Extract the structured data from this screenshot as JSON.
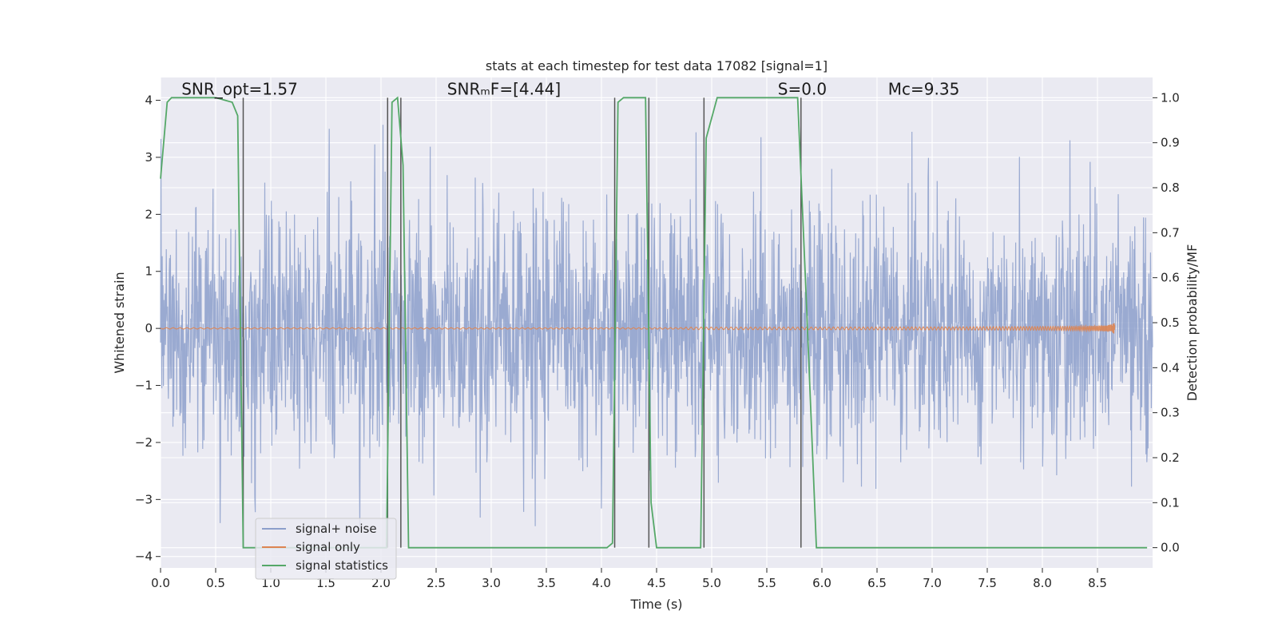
{
  "chart_data": {
    "type": "line",
    "title": "stats at each timestep for test data 17082 [signal=1]",
    "xlabel": "Time (s)",
    "ylabel_left": "Whitened strain",
    "ylabel_right": "Detection probability/MF",
    "xlim": [
      0.0,
      9.0
    ],
    "ylim_left": [
      -4.2,
      4.4
    ],
    "ylim_right": [
      -0.045,
      1.045
    ],
    "xticks": [
      0.0,
      0.5,
      1.0,
      1.5,
      2.0,
      2.5,
      3.0,
      3.5,
      4.0,
      4.5,
      5.0,
      5.5,
      6.0,
      6.5,
      7.0,
      7.5,
      8.0,
      8.5
    ],
    "xtick_labels": [
      "0.0",
      "0.5",
      "1.0",
      "1.5",
      "2.0",
      "2.5",
      "3.0",
      "3.5",
      "4.0",
      "4.5",
      "5.0",
      "5.5",
      "6.0",
      "6.5",
      "7.0",
      "7.5",
      "8.0",
      "8.5"
    ],
    "yticks_left": [
      -4,
      -3,
      -2,
      -1,
      0,
      1,
      2,
      3,
      4
    ],
    "ytick_labels_left": [
      "−4",
      "−3",
      "−2",
      "−1",
      "0",
      "1",
      "2",
      "3",
      "4"
    ],
    "yticks_right": [
      0.0,
      0.1,
      0.2,
      0.3,
      0.4,
      0.5,
      0.6,
      0.7,
      0.8,
      0.9,
      1.0
    ],
    "ytick_labels_right": [
      "0.0",
      "0.1",
      "0.2",
      "0.3",
      "0.4",
      "0.5",
      "0.6",
      "0.7",
      "0.8",
      "0.9",
      "1.0"
    ],
    "grid": true,
    "legend_position": "lower-left",
    "annotations": [
      {
        "text": "SNR_opt=1.57",
        "x": 0.19,
        "y": 4.1
      },
      {
        "text": "SNRₘF=[4.44]",
        "x": 2.6,
        "y": 4.1
      },
      {
        "text": "S=0.0",
        "x": 5.6,
        "y": 4.1
      },
      {
        "text": "Mᴄ=9.35",
        "x": 6.6,
        "y": 4.1
      }
    ],
    "series": [
      {
        "name": "signal+ noise",
        "color": "#8c9fcb",
        "axis": "left",
        "description_values": {
          "envelope_upper": 3.6,
          "envelope_lower": -3.8,
          "dense_band": [
            -1.5,
            1.6
          ]
        }
      },
      {
        "name": "signal only",
        "color": "#dd8452",
        "axis": "left",
        "chirp": {
          "t_start": 0.0,
          "t_merger": 8.66,
          "peak_amplitude": 0.22
        }
      },
      {
        "name": "signal statistics",
        "color": "#55a868",
        "axis": "right",
        "x": [
          0.0,
          0.06,
          0.1,
          0.2,
          0.3,
          0.5,
          0.65,
          0.7,
          0.75,
          0.8,
          0.9,
          2.05,
          2.1,
          2.15,
          2.2,
          2.25,
          2.3,
          4.05,
          4.1,
          4.15,
          4.2,
          4.3,
          4.4,
          4.45,
          4.5,
          4.6,
          4.8,
          4.9,
          4.95,
          5.05,
          5.1,
          5.2,
          5.78,
          5.85,
          5.95,
          6.0,
          6.1,
          6.2,
          8.95
        ],
        "y": [
          0.82,
          0.99,
          1.0,
          1.0,
          1.0,
          1.0,
          0.99,
          0.96,
          0.0,
          0.0,
          0.0,
          0.0,
          0.99,
          1.0,
          0.85,
          0.0,
          0.0,
          0.0,
          0.01,
          0.99,
          1.0,
          1.0,
          1.0,
          0.1,
          0.0,
          0.0,
          0.0,
          0.0,
          0.91,
          1.0,
          1.0,
          1.0,
          1.0,
          0.6,
          0.0,
          0.0,
          0.0,
          0.0,
          0.0
        ]
      }
    ],
    "vertical_lines": {
      "color": "#555555",
      "x": [
        0.75,
        2.06,
        2.18,
        4.12,
        4.43,
        4.93,
        5.81
      ],
      "y_range": [
        0.0,
        1.0
      ]
    }
  }
}
